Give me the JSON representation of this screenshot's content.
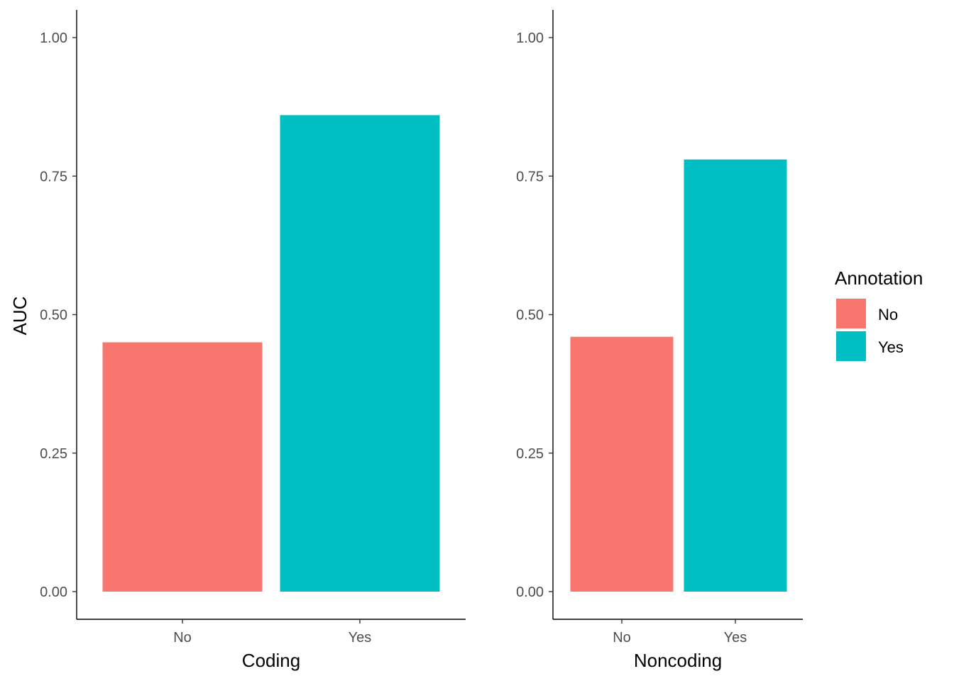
{
  "chart_data": [
    {
      "type": "bar",
      "panel": "left",
      "xlabel": "Coding",
      "ylabel": "AUC",
      "categories": [
        "No",
        "Yes"
      ],
      "values": [
        0.45,
        0.86
      ],
      "fill_by_category": {
        "No": "#F8766D",
        "Yes": "#00BFC4"
      },
      "ylim": [
        0,
        1.0
      ],
      "yticks": [
        "0.00",
        "0.25",
        "0.50",
        "0.75",
        "1.00"
      ],
      "grid": false
    },
    {
      "type": "bar",
      "panel": "right",
      "xlabel": "Noncoding",
      "ylabel": "",
      "categories": [
        "No",
        "Yes"
      ],
      "values": [
        0.46,
        0.78
      ],
      "fill_by_category": {
        "No": "#F8766D",
        "Yes": "#00BFC4"
      },
      "ylim": [
        0,
        1.0
      ],
      "yticks": [
        "0.00",
        "0.25",
        "0.50",
        "0.75",
        "1.00"
      ],
      "grid": false
    }
  ],
  "legend": {
    "title": "Annotation",
    "placement": "right",
    "items": [
      {
        "label": "No",
        "color": "#F8766D"
      },
      {
        "label": "Yes",
        "color": "#00BFC4"
      }
    ]
  }
}
